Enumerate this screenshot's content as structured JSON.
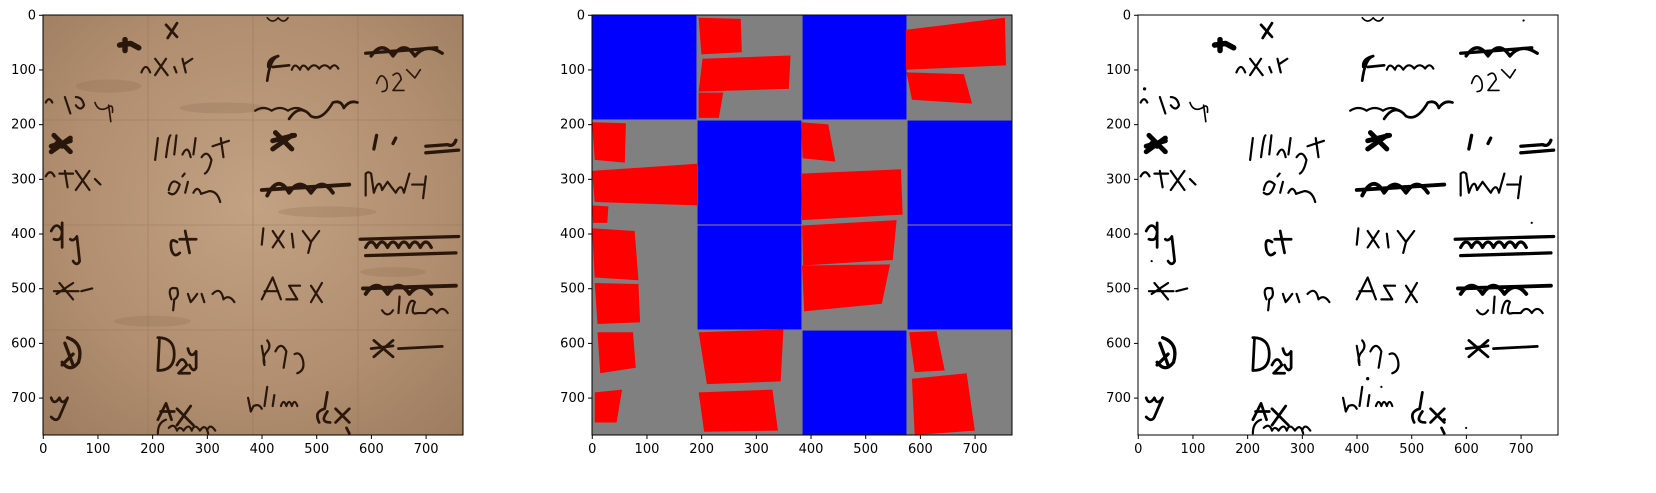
{
  "figure": {
    "panels": [
      {
        "id": "manuscript",
        "kind": "photo"
      },
      {
        "id": "layout-map",
        "kind": "mask"
      },
      {
        "id": "binarized",
        "kind": "binary"
      }
    ]
  },
  "chart_data": [
    {
      "type": "image",
      "panel": "manuscript",
      "xlim": [
        0,
        768
      ],
      "ylim": [
        768,
        0
      ],
      "xticks": [
        0,
        100,
        200,
        300,
        400,
        500,
        600,
        700
      ],
      "yticks": [
        0,
        100,
        200,
        300,
        400,
        500,
        600,
        700
      ],
      "colors": {
        "parchment_light": "#b9987a",
        "parchment_dark": "#9c7b5f",
        "ink": "#2a170b"
      }
    },
    {
      "type": "image",
      "panel": "layout-map",
      "xlim": [
        0,
        768
      ],
      "ylim": [
        768,
        0
      ],
      "xticks": [
        0,
        100,
        200,
        300,
        400,
        500,
        600,
        700
      ],
      "yticks": [
        0,
        100,
        200,
        300,
        400,
        500,
        600,
        700
      ],
      "colors": {
        "background": "#808080",
        "blue": "#0000ff",
        "red": "#ff0000"
      },
      "blue_cells": [
        [
          0,
          192,
          0,
          192
        ],
        [
          384,
          576,
          0,
          192
        ],
        [
          192,
          384,
          192,
          384
        ],
        [
          576,
          768,
          192,
          384
        ],
        [
          192,
          384,
          384,
          576
        ],
        [
          576,
          768,
          384,
          576
        ],
        [
          384,
          576,
          576,
          768
        ]
      ],
      "red_patches": [
        [
          [
            195,
            5
          ],
          [
            272,
            7
          ],
          [
            274,
            68
          ],
          [
            200,
            72
          ]
        ],
        [
          [
            202,
            80
          ],
          [
            363,
            74
          ],
          [
            360,
            135
          ],
          [
            195,
            140
          ]
        ],
        [
          [
            195,
            142
          ],
          [
            240,
            142
          ],
          [
            232,
            188
          ],
          [
            195,
            188
          ]
        ],
        [
          [
            574,
            27
          ],
          [
            755,
            5
          ],
          [
            757,
            92
          ],
          [
            574,
            100
          ]
        ],
        [
          [
            575,
            105
          ],
          [
            680,
            108
          ],
          [
            695,
            162
          ],
          [
            585,
            155
          ]
        ],
        [
          [
            0,
            196
          ],
          [
            62,
            198
          ],
          [
            60,
            270
          ],
          [
            5,
            265
          ]
        ],
        [
          [
            382,
            196
          ],
          [
            432,
            200
          ],
          [
            445,
            268
          ],
          [
            385,
            262
          ]
        ],
        [
          [
            0,
            285
          ],
          [
            192,
            272
          ],
          [
            192,
            348
          ],
          [
            5,
            342
          ]
        ],
        [
          [
            382,
            290
          ],
          [
            565,
            282
          ],
          [
            568,
            365
          ],
          [
            384,
            375
          ]
        ],
        [
          [
            0,
            348
          ],
          [
            30,
            350
          ],
          [
            28,
            380
          ],
          [
            2,
            380
          ]
        ],
        [
          [
            0,
            390
          ],
          [
            78,
            395
          ],
          [
            85,
            485
          ],
          [
            5,
            480
          ]
        ],
        [
          [
            384,
            385
          ],
          [
            557,
            375
          ],
          [
            550,
            448
          ],
          [
            386,
            458
          ]
        ],
        [
          [
            384,
            458
          ],
          [
            545,
            456
          ],
          [
            530,
            528
          ],
          [
            388,
            542
          ]
        ],
        [
          [
            5,
            490
          ],
          [
            85,
            492
          ],
          [
            88,
            562
          ],
          [
            10,
            565
          ]
        ],
        [
          [
            195,
            580
          ],
          [
            350,
            575
          ],
          [
            345,
            670
          ],
          [
            210,
            675
          ]
        ],
        [
          [
            10,
            580
          ],
          [
            75,
            580
          ],
          [
            80,
            645
          ],
          [
            15,
            655
          ]
        ],
        [
          [
            580,
            580
          ],
          [
            630,
            578
          ],
          [
            645,
            650
          ],
          [
            590,
            653
          ]
        ],
        [
          [
            195,
            690
          ],
          [
            330,
            685
          ],
          [
            340,
            760
          ],
          [
            205,
            762
          ]
        ],
        [
          [
            5,
            690
          ],
          [
            55,
            685
          ],
          [
            45,
            745
          ],
          [
            5,
            745
          ]
        ],
        [
          [
            585,
            665
          ],
          [
            685,
            655
          ],
          [
            700,
            760
          ],
          [
            590,
            768
          ]
        ]
      ]
    },
    {
      "type": "image",
      "panel": "binarized",
      "xlim": [
        0,
        768
      ],
      "ylim": [
        768,
        0
      ],
      "xticks": [
        0,
        100,
        200,
        300,
        400,
        500,
        600,
        700
      ],
      "yticks": [
        0,
        100,
        200,
        300,
        400,
        500,
        600,
        700
      ],
      "colors": {
        "background": "#ffffff",
        "ink": "#000000"
      }
    }
  ]
}
